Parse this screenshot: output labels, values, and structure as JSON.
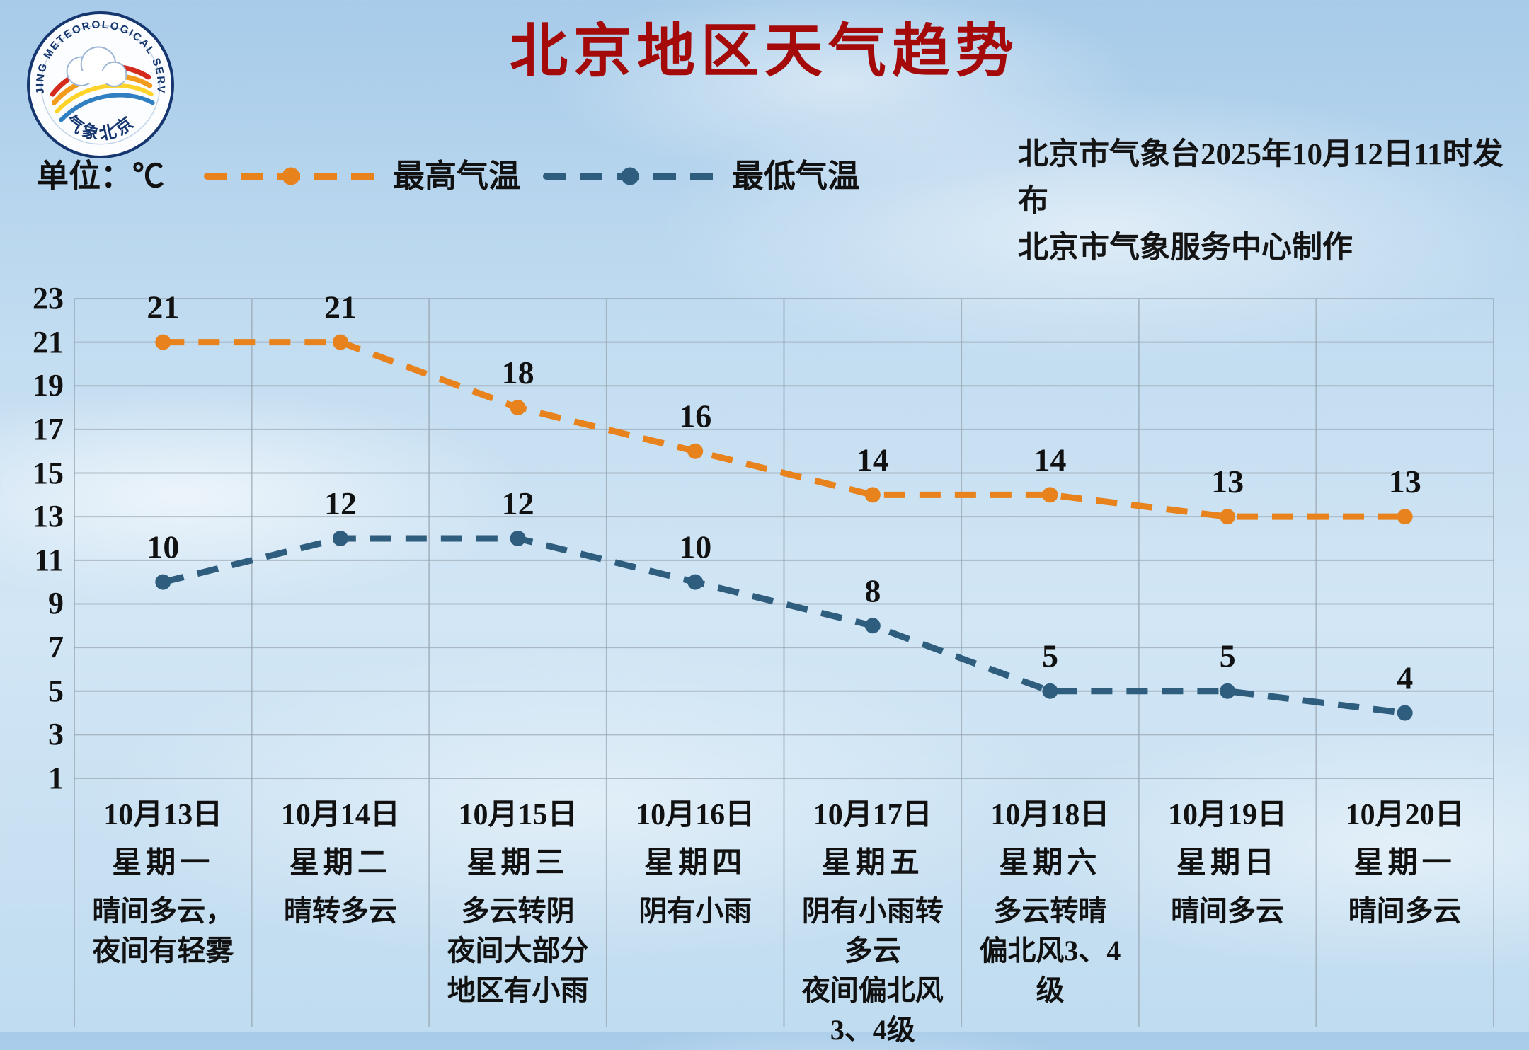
{
  "header": {
    "title": "北京地区天气趋势",
    "issued_line1": "北京市气象台2025年10月12日11时发布",
    "issued_line2": "北京市气象服务中心制作"
  },
  "logo": {
    "ring_text_top": "BEIJING METEOROLOGICAL SERVICE",
    "ring_text_bottom": "气象北京"
  },
  "legend": {
    "unit_label": "单位：℃",
    "items": [
      {
        "label": "最高气温",
        "color": "#e8821c"
      },
      {
        "label": "最低气温",
        "color": "#2f5d7e"
      }
    ]
  },
  "chart_data": {
    "type": "line",
    "title": "北京地区天气趋势",
    "x": [
      "10月13日",
      "10月14日",
      "10月15日",
      "10月16日",
      "10月17日",
      "10月18日",
      "10月19日",
      "10月20日"
    ],
    "weekdays": [
      "星期一",
      "星期二",
      "星期三",
      "星期四",
      "星期五",
      "星期六",
      "星期日",
      "星期一"
    ],
    "conditions": [
      [
        "晴间多云，夜间有轻雾"
      ],
      [
        "晴转多云"
      ],
      [
        "多云转阴",
        "夜间大部分地区有小雨"
      ],
      [
        "阴有小雨"
      ],
      [
        "阴有小雨转多云",
        "夜间偏北风3、4级"
      ],
      [
        "多云转晴",
        "偏北风3、4级"
      ],
      [
        "晴间多云"
      ],
      [
        "晴间多云"
      ]
    ],
    "series": [
      {
        "name": "最高气温",
        "color": "#e8821c",
        "values": [
          21,
          21,
          18,
          16,
          14,
          14,
          13,
          13
        ]
      },
      {
        "name": "最低气温",
        "color": "#2f5d7e",
        "values": [
          10,
          12,
          12,
          10,
          8,
          5,
          5,
          4
        ]
      }
    ],
    "ylim": [
      1,
      23
    ],
    "yticks": [
      23,
      21,
      19,
      17,
      15,
      13,
      11,
      9,
      7,
      5,
      3,
      1
    ],
    "grid": true,
    "line_style": "dashed",
    "marker": "circle",
    "legend_position": "top-left",
    "unit": "℃"
  }
}
